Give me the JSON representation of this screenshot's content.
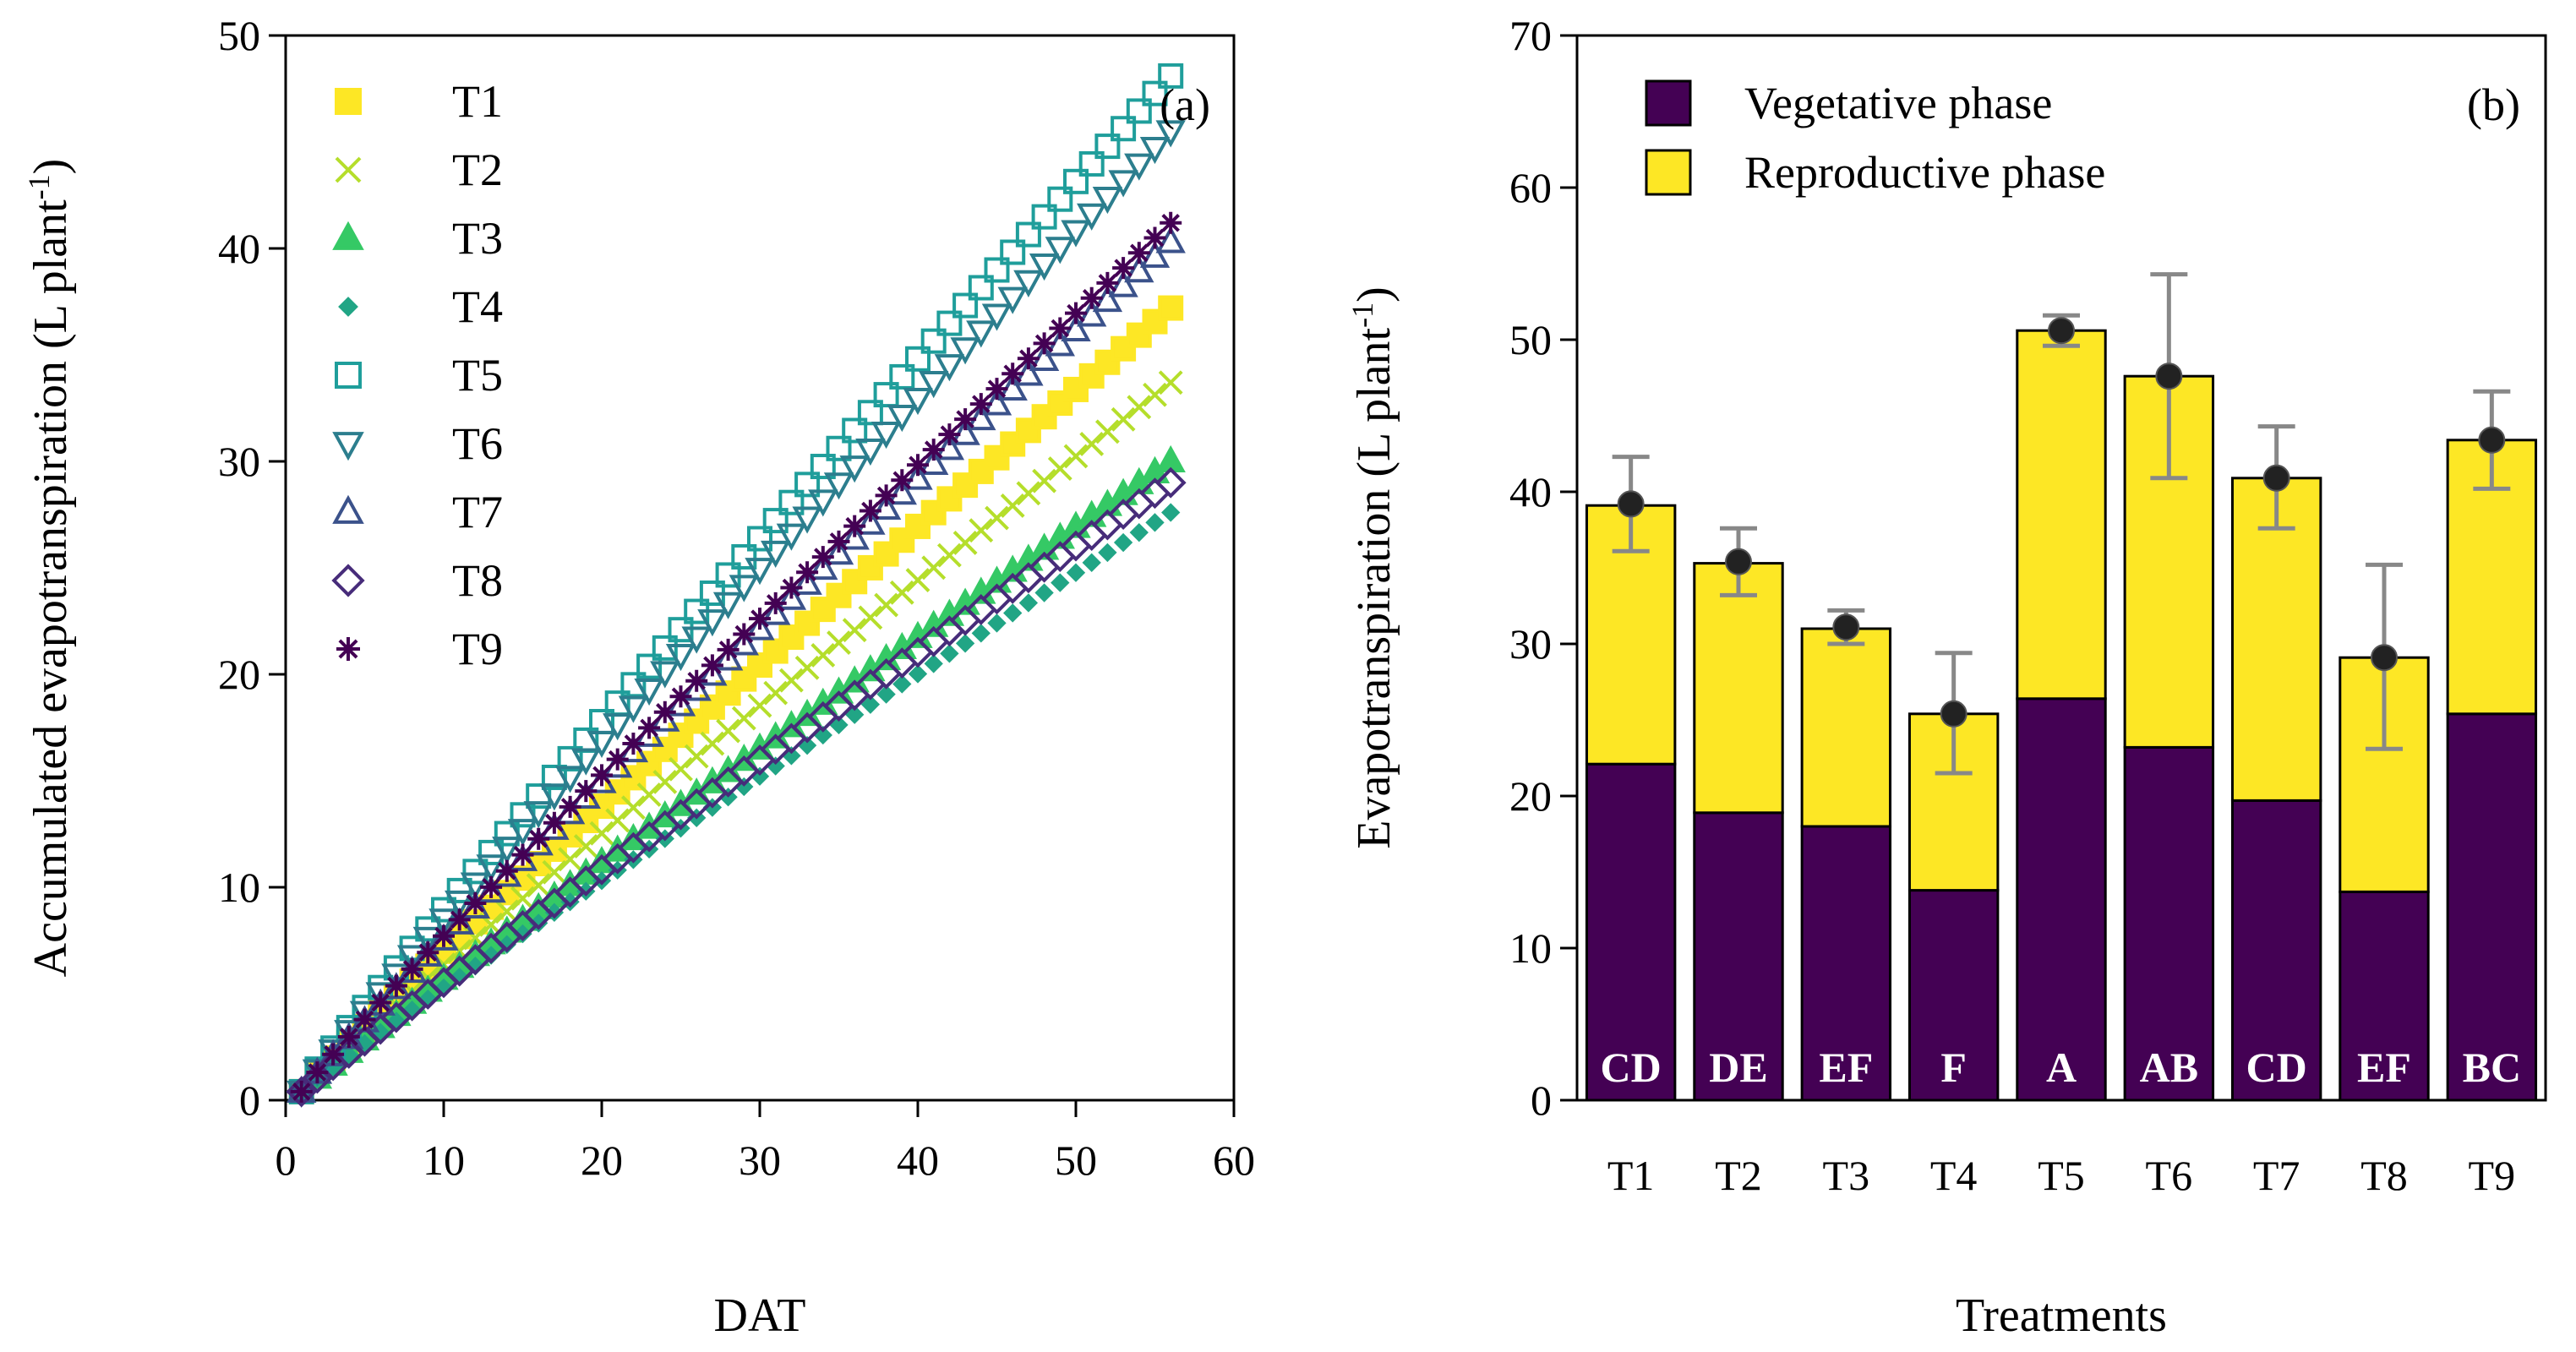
{
  "chart_data": [
    {
      "type": "scatter",
      "panel_label": "(a)",
      "xlabel": "DAT",
      "ylabel": "Accumulated evapotranspiration (L plant",
      "ylabel_sup": "-1",
      "ylabel_close": ")",
      "xlim": [
        0,
        60
      ],
      "ylim": [
        0,
        50
      ],
      "xticks": [
        "0",
        "10",
        "20",
        "30",
        "40",
        "50",
        "60"
      ],
      "yticks": [
        "0",
        "10",
        "20",
        "30",
        "40",
        "50"
      ],
      "legend_position": "top-left",
      "series": [
        {
          "name": "T1",
          "marker": "square-filled",
          "color": "#FDE725",
          "final": 37.2,
          "x_start": 1,
          "x_end": 56
        },
        {
          "name": "T2",
          "marker": "x",
          "color": "#B5DE2B",
          "final": 33.7,
          "x_start": 1,
          "x_end": 56
        },
        {
          "name": "T3",
          "marker": "triangle-filled",
          "color": "#35C965",
          "final": 30.0,
          "x_start": 1,
          "x_end": 56
        },
        {
          "name": "T4",
          "marker": "diamond-filled",
          "color": "#21A585",
          "final": 27.6,
          "x_start": 1,
          "x_end": 56
        },
        {
          "name": "T5",
          "marker": "square-open",
          "color": "#1F9E9B",
          "final": 48.1,
          "x_start": 1,
          "x_end": 56
        },
        {
          "name": "T6",
          "marker": "triangle-down-open",
          "color": "#2C7E8E",
          "final": 45.5,
          "x_start": 1,
          "x_end": 56
        },
        {
          "name": "T7",
          "marker": "triangle-open",
          "color": "#3B528B",
          "final": 40.3,
          "x_start": 1,
          "x_end": 56
        },
        {
          "name": "T8",
          "marker": "diamond-open",
          "color": "#472C7A",
          "final": 29.0,
          "x_start": 1,
          "x_end": 56
        },
        {
          "name": "T9",
          "marker": "asterisk",
          "color": "#440154",
          "final": 41.2,
          "x_start": 1,
          "x_end": 56
        }
      ]
    },
    {
      "type": "bar",
      "stacked": true,
      "panel_label": "(b)",
      "xlabel": "Treatments",
      "ylabel": "Evapotranspiration (L plant",
      "ylabel_sup": "-1",
      "ylabel_close": ")",
      "ylim": [
        0,
        70
      ],
      "yticks": [
        "0",
        "10",
        "20",
        "30",
        "40",
        "50",
        "60",
        "70"
      ],
      "categories": [
        "T1",
        "T2",
        "T3",
        "T4",
        "T5",
        "T6",
        "T7",
        "T8",
        "T9"
      ],
      "legend_position": "top-left",
      "series": [
        {
          "name": "Vegetative phase",
          "color": "#440154",
          "values": [
            22.1,
            18.9,
            18.0,
            13.8,
            26.4,
            23.2,
            19.7,
            13.7,
            25.4
          ]
        },
        {
          "name": "Reproductive phase",
          "color": "#FDE725",
          "values": [
            17.0,
            16.4,
            13.0,
            11.6,
            24.2,
            24.4,
            21.2,
            15.4,
            18.0
          ]
        }
      ],
      "means": [
        39.2,
        35.4,
        31.1,
        25.4,
        50.6,
        47.6,
        40.9,
        29.1,
        43.4
      ],
      "error_low": [
        36.1,
        33.2,
        30.0,
        21.5,
        49.6,
        40.9,
        37.6,
        23.1,
        40.2
      ],
      "error_high": [
        42.3,
        37.6,
        32.2,
        29.4,
        51.6,
        54.3,
        44.3,
        35.2,
        46.6
      ],
      "letters": [
        "CD",
        "DE",
        "EF",
        "F",
        "A",
        "AB",
        "CD",
        "EF",
        "BC"
      ],
      "colors": {
        "error_bar": "#888888",
        "mean_point": "#222222",
        "bar_outline": "#000000"
      }
    }
  ]
}
